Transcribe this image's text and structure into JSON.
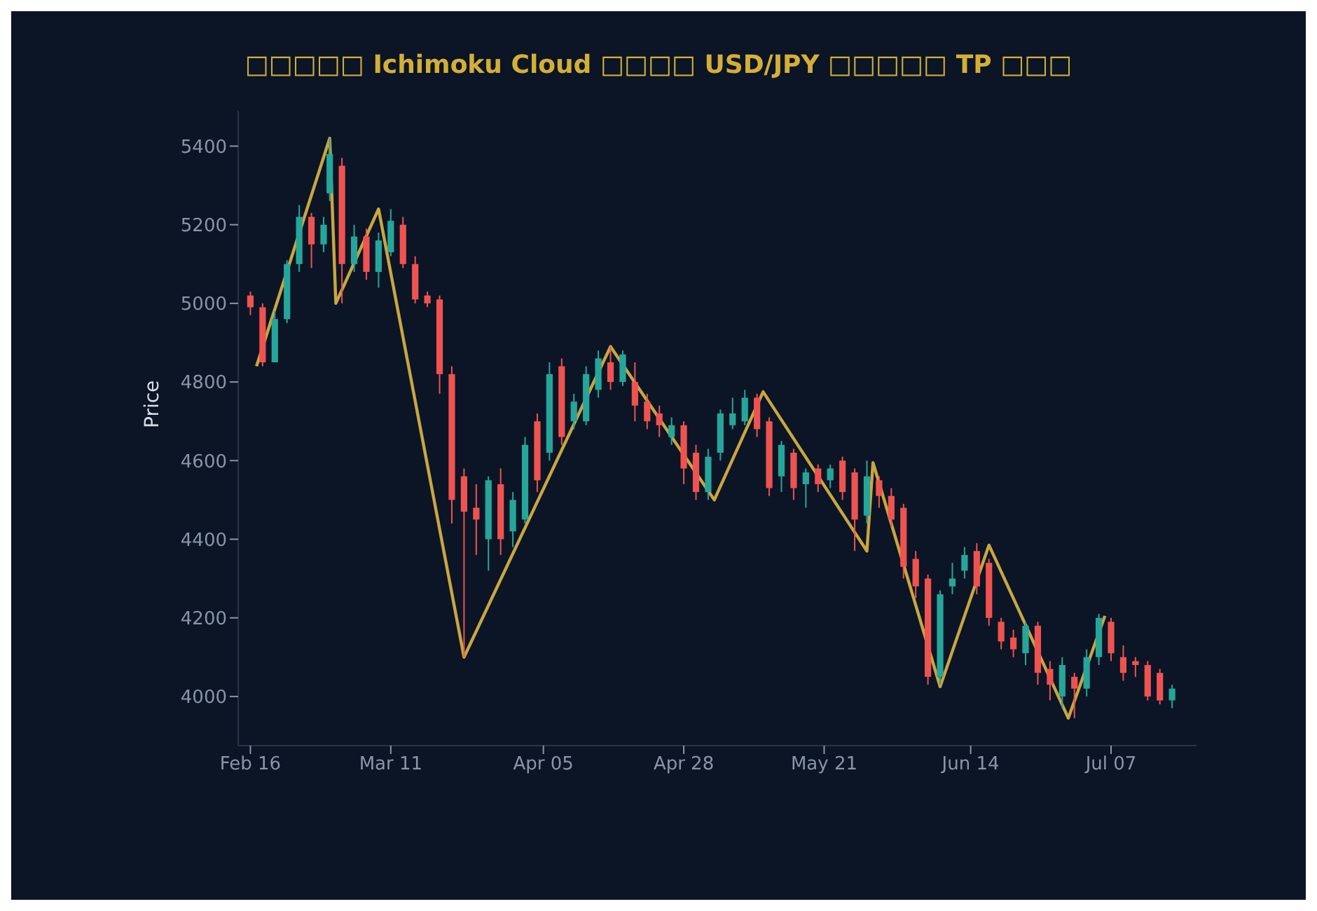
{
  "chart_data": {
    "type": "candlestick",
    "title": "□□□□□ Ichimoku Cloud □□□□ USD/JPY □□□□□ TP □□□",
    "ylabel": "Price",
    "xlim": [
      "--02-14",
      "--07-21"
    ],
    "xticks": [
      {
        "value": "--02-16",
        "label": "Feb 16"
      },
      {
        "value": "--03-11",
        "label": "Mar 11"
      },
      {
        "value": "--04-05",
        "label": "Apr 05"
      },
      {
        "value": "--04-28",
        "label": "Apr 28"
      },
      {
        "value": "--05-21",
        "label": "May 21"
      },
      {
        "value": "--06-14",
        "label": "Jun 14"
      },
      {
        "value": "--07-07",
        "label": "Jul 07"
      }
    ],
    "ylim": [
      3875,
      5490
    ],
    "yticks": [
      4000,
      4200,
      4400,
      4600,
      4800,
      5000,
      5200,
      5400
    ],
    "series": [
      {
        "type": "candlestick",
        "x": [
          "--02-16",
          "--02-18",
          "--02-20",
          "--02-22",
          "--02-24",
          "--02-26",
          "--02-28",
          "--03-01",
          "--03-03",
          "--03-05",
          "--03-07",
          "--03-09",
          "--03-11",
          "--03-13",
          "--03-15",
          "--03-17",
          "--03-19",
          "--03-21",
          "--03-23",
          "--03-25",
          "--03-27",
          "--03-29",
          "--03-31",
          "--04-02",
          "--04-04",
          "--04-06",
          "--04-08",
          "--04-10",
          "--04-12",
          "--04-14",
          "--04-16",
          "--04-18",
          "--04-20",
          "--04-22",
          "--04-24",
          "--04-26",
          "--04-28",
          "--04-30",
          "--05-02",
          "--05-04",
          "--05-06",
          "--05-08",
          "--05-10",
          "--05-12",
          "--05-14",
          "--05-16",
          "--05-18",
          "--05-20",
          "--05-22",
          "--05-24",
          "--05-26",
          "--05-28",
          "--05-30",
          "--06-01",
          "--06-03",
          "--06-05",
          "--06-07",
          "--06-09",
          "--06-11",
          "--06-13",
          "--06-15",
          "--06-17",
          "--06-19",
          "--06-21",
          "--06-23",
          "--06-25",
          "--06-27",
          "--06-29",
          "--07-01",
          "--07-03",
          "--07-05",
          "--07-07",
          "--07-09",
          "--07-11",
          "--07-13",
          "--07-15",
          "--07-17"
        ],
        "ohlc": [
          [
            5020,
            5030,
            4970,
            4990
          ],
          [
            4990,
            5000,
            4840,
            4850
          ],
          [
            4850,
            4980,
            4850,
            4960
          ],
          [
            4960,
            5110,
            4950,
            5100
          ],
          [
            5100,
            5250,
            5080,
            5220
          ],
          [
            5220,
            5230,
            5090,
            5150
          ],
          [
            5150,
            5220,
            5130,
            5200
          ],
          [
            5280,
            5420,
            5260,
            5380
          ],
          [
            5350,
            5370,
            5000,
            5100
          ],
          [
            5100,
            5200,
            5080,
            5170
          ],
          [
            5170,
            5190,
            5060,
            5080
          ],
          [
            5080,
            5180,
            5040,
            5160
          ],
          [
            5130,
            5240,
            5120,
            5210
          ],
          [
            5200,
            5220,
            5090,
            5100
          ],
          [
            5100,
            5120,
            5000,
            5010
          ],
          [
            5020,
            5030,
            4990,
            5000
          ],
          [
            5010,
            5020,
            4770,
            4820
          ],
          [
            4820,
            4840,
            4440,
            4500
          ],
          [
            4560,
            4580,
            4100,
            4470
          ],
          [
            4480,
            4540,
            4360,
            4450
          ],
          [
            4400,
            4560,
            4320,
            4550
          ],
          [
            4540,
            4580,
            4360,
            4400
          ],
          [
            4420,
            4520,
            4380,
            4500
          ],
          [
            4450,
            4660,
            4440,
            4640
          ],
          [
            4700,
            4720,
            4520,
            4550
          ],
          [
            4620,
            4850,
            4600,
            4820
          ],
          [
            4840,
            4860,
            4640,
            4660
          ],
          [
            4700,
            4770,
            4680,
            4750
          ],
          [
            4700,
            4840,
            4690,
            4820
          ],
          [
            4780,
            4880,
            4760,
            4860
          ],
          [
            4850,
            4890,
            4780,
            4800
          ],
          [
            4800,
            4880,
            4790,
            4870
          ],
          [
            4800,
            4850,
            4700,
            4740
          ],
          [
            4750,
            4770,
            4680,
            4700
          ],
          [
            4720,
            4740,
            4660,
            4690
          ],
          [
            4660,
            4710,
            4640,
            4690
          ],
          [
            4690,
            4700,
            4540,
            4580
          ],
          [
            4620,
            4640,
            4500,
            4520
          ],
          [
            4520,
            4630,
            4500,
            4610
          ],
          [
            4620,
            4730,
            4600,
            4720
          ],
          [
            4690,
            4760,
            4680,
            4720
          ],
          [
            4700,
            4780,
            4690,
            4760
          ],
          [
            4760,
            4770,
            4660,
            4680
          ],
          [
            4700,
            4710,
            4510,
            4530
          ],
          [
            4560,
            4650,
            4520,
            4640
          ],
          [
            4620,
            4630,
            4500,
            4530
          ],
          [
            4540,
            4580,
            4480,
            4570
          ],
          [
            4580,
            4590,
            4520,
            4540
          ],
          [
            4550,
            4590,
            4530,
            4580
          ],
          [
            4600,
            4610,
            4500,
            4520
          ],
          [
            4570,
            4580,
            4370,
            4450
          ],
          [
            4460,
            4600,
            4440,
            4560
          ],
          [
            4550,
            4560,
            4480,
            4510
          ],
          [
            4510,
            4530,
            4430,
            4450
          ],
          [
            4480,
            4490,
            4300,
            4330
          ],
          [
            4350,
            4370,
            4250,
            4280
          ],
          [
            4300,
            4310,
            4030,
            4050
          ],
          [
            4050,
            4270,
            4030,
            4260
          ],
          [
            4280,
            4340,
            4260,
            4300
          ],
          [
            4320,
            4380,
            4300,
            4360
          ],
          [
            4370,
            4390,
            4260,
            4280
          ],
          [
            4340,
            4350,
            4180,
            4200
          ],
          [
            4190,
            4200,
            4120,
            4140
          ],
          [
            4150,
            4170,
            4100,
            4120
          ],
          [
            4110,
            4190,
            4080,
            4180
          ],
          [
            4180,
            4190,
            4030,
            4060
          ],
          [
            4070,
            4090,
            3990,
            4030
          ],
          [
            4000,
            4100,
            3970,
            4080
          ],
          [
            4050,
            4060,
            3945,
            4020
          ],
          [
            4020,
            4120,
            4000,
            4100
          ],
          [
            4100,
            4210,
            4080,
            4200
          ],
          [
            4190,
            4200,
            4090,
            4110
          ],
          [
            4100,
            4130,
            4040,
            4060
          ],
          [
            4090,
            4100,
            4050,
            4080
          ],
          [
            4080,
            4090,
            3990,
            4000
          ],
          [
            4060,
            4070,
            3980,
            3990
          ],
          [
            3990,
            4030,
            3970,
            4020
          ]
        ],
        "colors": [
          "#ef5350",
          "#ef5350",
          "#26a69a",
          "#26a69a",
          "#26a69a",
          "#ef5350",
          "#26a69a",
          "#26a69a",
          "#ef5350",
          "#26a69a",
          "#ef5350",
          "#26a69a",
          "#26a69a",
          "#ef5350",
          "#ef5350",
          "#ef5350",
          "#ef5350",
          "#ef5350",
          "#ef5350",
          "#ef5350",
          "#26a69a",
          "#ef5350",
          "#26a69a",
          "#26a69a",
          "#ef5350",
          "#26a69a",
          "#ef5350",
          "#26a69a",
          "#26a69a",
          "#26a69a",
          "#ef5350",
          "#26a69a",
          "#ef5350",
          "#ef5350",
          "#ef5350",
          "#26a69a",
          "#ef5350",
          "#ef5350",
          "#26a69a",
          "#26a69a",
          "#26a69a",
          "#26a69a",
          "#ef5350",
          "#ef5350",
          "#26a69a",
          "#ef5350",
          "#26a69a",
          "#ef5350",
          "#26a69a",
          "#ef5350",
          "#ef5350",
          "#26a69a",
          "#ef5350",
          "#ef5350",
          "#ef5350",
          "#ef5350",
          "#ef5350",
          "#26a69a",
          "#26a69a",
          "#26a69a",
          "#ef5350",
          "#ef5350",
          "#ef5350",
          "#ef5350",
          "#26a69a",
          "#ef5350",
          "#ef5350",
          "#26a69a",
          "#ef5350",
          "#26a69a",
          "#26a69a",
          "#ef5350",
          "#ef5350",
          "#ef5350",
          "#ef5350",
          "#ef5350",
          "#26a69a"
        ]
      },
      {
        "type": "line",
        "color": "#c9a640",
        "x": [
          "--02-17",
          "--03-01",
          "--03-02",
          "--03-09",
          "--03-23",
          "--04-16",
          "--05-03",
          "--05-11",
          "--05-28",
          "--05-29",
          "--06-09",
          "--06-17",
          "--06-30",
          "--07-06"
        ],
        "values": [
          4840,
          5420,
          5000,
          5240,
          4100,
          4890,
          4500,
          4775,
          4370,
          4595,
          4025,
          4385,
          3945,
          4205
        ]
      }
    ]
  }
}
